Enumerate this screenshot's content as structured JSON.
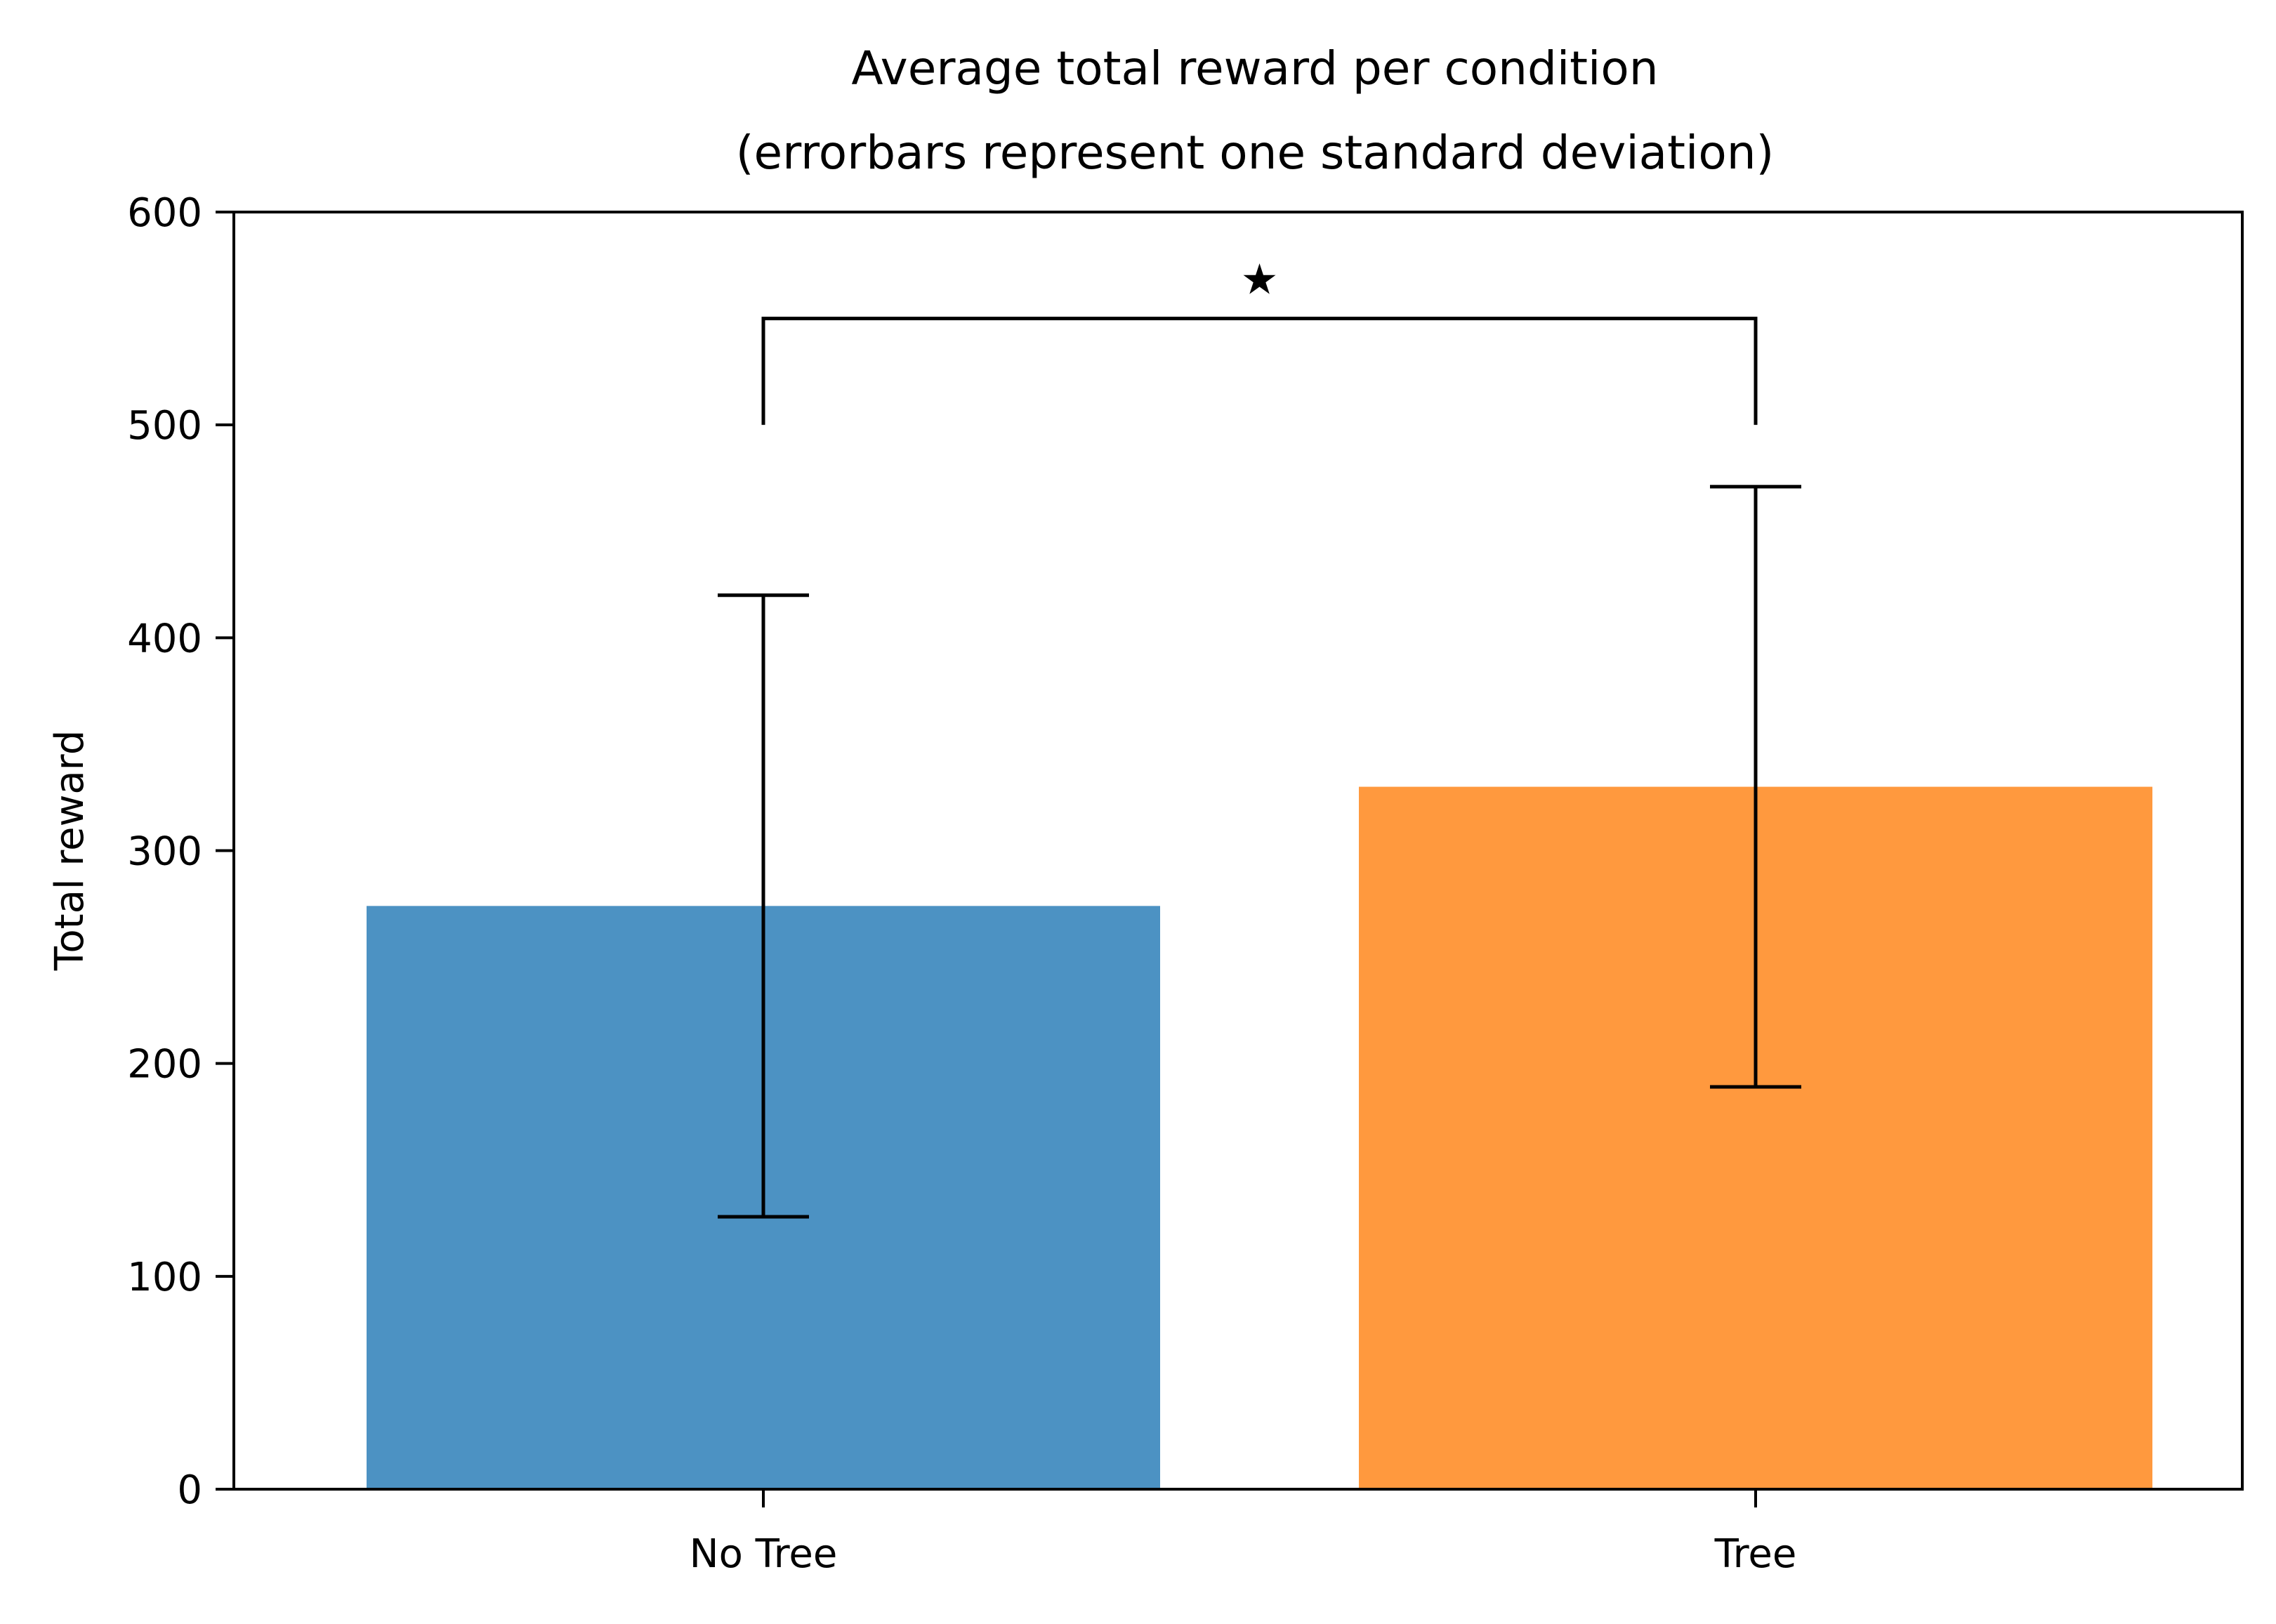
{
  "chart_data": {
    "type": "bar",
    "title_line1": "Average total reward per condition",
    "title_line2": "(errorbars represent one standard deviation)",
    "xlabel": "",
    "ylabel": "Total reward",
    "ylim": [
      0,
      600
    ],
    "yticks": [
      0,
      100,
      200,
      300,
      400,
      500,
      600
    ],
    "categories": [
      "No Tree",
      "Tree"
    ],
    "values": [
      274,
      330
    ],
    "errors": [
      146,
      141
    ],
    "colors": [
      "#4c92c3",
      "#ff993e"
    ],
    "significance": {
      "from": "No Tree",
      "to": "Tree",
      "bracket_y": 550,
      "leg_bottom_y": 500,
      "label": "★"
    },
    "grid": false,
    "legend": "none"
  }
}
